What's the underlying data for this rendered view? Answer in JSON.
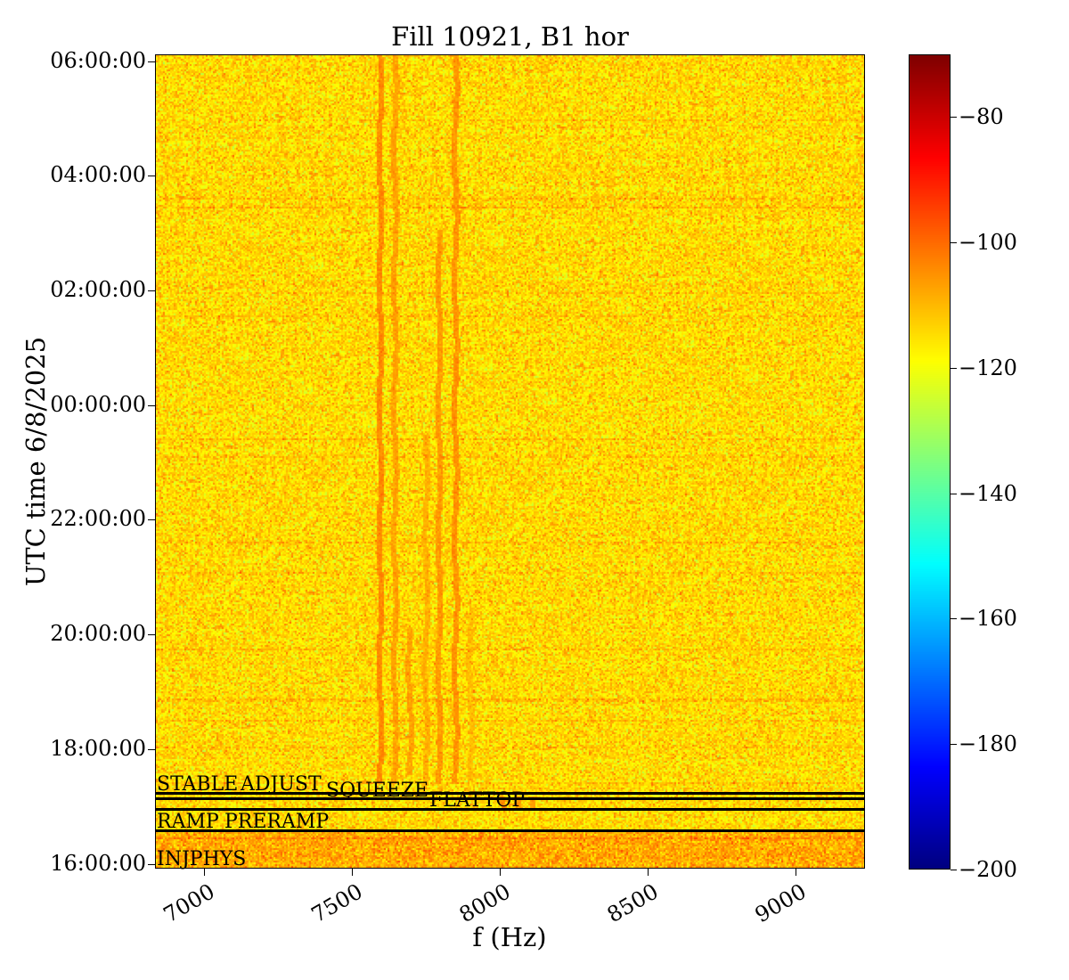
{
  "chart_data": {
    "type": "heatmap",
    "title": "Fill 10921, B1 hor",
    "xlabel": "f (Hz)",
    "ylabel": "UTC time 6/8/2025",
    "xlim": [
      6834,
      9235
    ],
    "ylim": [
      "2025-06-08T15:55",
      "2025-06-09T06:07"
    ],
    "xticks": [
      7000,
      7500,
      8000,
      8500,
      9000
    ],
    "xtick_labels": [
      "7000",
      "7500",
      "8000",
      "8500",
      "9000"
    ],
    "yticks": [
      "2025-06-08T16:00",
      "2025-06-08T18:00",
      "2025-06-08T20:00",
      "2025-06-08T22:00",
      "2025-06-09T00:00",
      "2025-06-09T02:00",
      "2025-06-09T04:00",
      "2025-06-09T06:00"
    ],
    "ytick_labels": [
      "16:00:00",
      "18:00:00",
      "20:00:00",
      "22:00:00",
      "00:00:00",
      "02:00:00",
      "04:00:00",
      "06:00:00"
    ],
    "colormap": "jet",
    "colorbar": {
      "range": [
        -200,
        -70
      ],
      "ticks": [
        -80,
        -100,
        -120,
        -140,
        -160,
        -180,
        -200
      ],
      "tick_labels": [
        "−80",
        "−100",
        "−120",
        "−140",
        "−160",
        "−180",
        "−200"
      ]
    },
    "background_level": -114,
    "spectral_lines": [
      {
        "f": 7590,
        "from": "2025-06-08T17:25",
        "to": "2025-06-09T06:07",
        "level": -104
      },
      {
        "f": 7640,
        "from": "2025-06-08T17:25",
        "to": "2025-06-09T06:07",
        "level": -107
      },
      {
        "f": 7690,
        "from": "2025-06-08T17:35",
        "to": "2025-06-08T20:10",
        "level": -107
      },
      {
        "f": 7745,
        "from": "2025-06-08T17:25",
        "to": "2025-06-08T23:30",
        "level": -109
      },
      {
        "f": 7790,
        "from": "2025-06-08T17:25",
        "to": "2025-06-09T03:05",
        "level": -106
      },
      {
        "f": 7845,
        "from": "2025-06-08T17:25",
        "to": "2025-06-09T06:07",
        "level": -105
      },
      {
        "f": 7895,
        "from": "2025-06-08T17:30",
        "to": "2025-06-08T20:30",
        "level": -111
      },
      {
        "f": 8010,
        "from": "2025-06-08T17:00",
        "to": "2025-06-08T17:12",
        "level": -104
      },
      {
        "f": 8060,
        "from": "2025-06-08T17:00",
        "to": "2025-06-08T17:12",
        "level": -106
      },
      {
        "f": 8110,
        "from": "2025-06-08T17:00",
        "to": "2025-06-08T17:12",
        "level": -106
      }
    ],
    "beam_modes": [
      {
        "label": "STABLE",
        "time": "2025-06-08T17:14"
      },
      {
        "label": "ADJUST",
        "time": "2025-06-08T17:14"
      },
      {
        "label": "SQUEEZE",
        "time": "2025-06-08T17:08"
      },
      {
        "label": "FLATTOP",
        "time": "2025-06-08T16:57"
      },
      {
        "label": "RAMP",
        "time": "2025-06-08T16:35"
      },
      {
        "label": "PRERAMP",
        "time": "2025-06-08T16:35"
      },
      {
        "label": "INJPHYS",
        "time": "2025-06-08T15:56"
      }
    ]
  }
}
